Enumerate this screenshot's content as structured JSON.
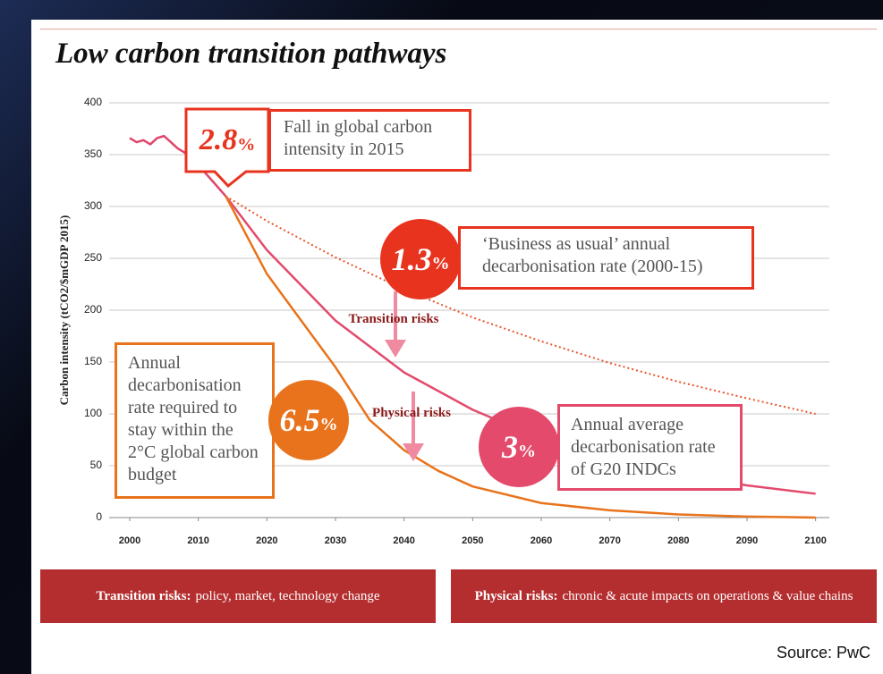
{
  "chart_data": {
    "type": "line",
    "title": "Low carbon transition pathways",
    "y_label": "Carbon intensity (tCO2/$mGDP 2015)",
    "xlim": [
      1997,
      2102
    ],
    "xticks": [
      2000,
      2010,
      2020,
      2030,
      2040,
      2050,
      2060,
      2070,
      2080,
      2090,
      2100
    ],
    "ylim": [
      0,
      400
    ],
    "yticks": [
      0,
      50,
      100,
      150,
      200,
      250,
      300,
      350,
      400
    ],
    "grid": true,
    "series": [
      {
        "color": "#e0456a",
        "style": "solid",
        "x": [
          2000,
          2001,
          2002,
          2003,
          2004,
          2005,
          2006,
          2007,
          2008,
          2010,
          2012,
          2014
        ],
        "values": [
          366,
          362,
          364,
          360,
          366,
          368,
          362,
          356,
          352,
          340,
          325,
          310
        ]
      },
      {
        "color": "#e8562a",
        "style": "dotted",
        "x": [
          2014,
          2020,
          2030,
          2040,
          2050,
          2060,
          2070,
          2080,
          2090,
          2100
        ],
        "values": [
          310,
          286,
          251,
          220,
          193,
          170,
          149,
          131,
          115,
          100
        ]
      },
      {
        "color": "#e34a6b",
        "style": "solid",
        "x": [
          2014,
          2020,
          2030,
          2040,
          2050,
          2060,
          2070,
          2080,
          2090,
          2100
        ],
        "values": [
          310,
          258,
          190,
          140,
          104,
          76,
          56,
          42,
          31,
          23
        ]
      },
      {
        "color": "#e8731c",
        "style": "solid",
        "x": [
          2014,
          2020,
          2025,
          2030,
          2035,
          2040,
          2045,
          2050,
          2060,
          2070,
          2080,
          2090,
          2100
        ],
        "values": [
          310,
          235,
          190,
          145,
          94,
          65,
          45,
          30,
          14,
          7,
          3,
          1,
          0
        ]
      }
    ],
    "annotations": [
      {
        "figure": "2.8",
        "unit": "%",
        "text": "Fall in global carbon intensity in 2015"
      },
      {
        "figure": "1.3",
        "unit": "%",
        "text": "‘Business as usual’ annual decarbonisation rate (2000-15)"
      },
      {
        "figure": "6.5",
        "unit": "%",
        "text": "Annual decarbonisation rate required to stay within the 2°C global carbon budget"
      },
      {
        "figure": "3",
        "unit": "%",
        "text": "Annual average decarbonisation rate of G20 INDCs"
      }
    ],
    "arrow_labels": [
      "Transition risks",
      "Physical risks"
    ],
    "footer_boxes": [
      {
        "heading": "Transition risks:",
        "text": "policy, market, technology change"
      },
      {
        "heading": "Physical risks:",
        "text": "chronic & acute impacts on operations & value chains"
      }
    ],
    "source": "Source: PwC"
  }
}
